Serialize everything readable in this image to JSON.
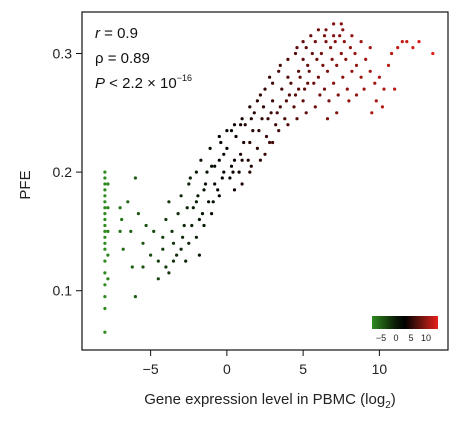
{
  "chart_data": {
    "type": "scatter",
    "xlabel": "Gene expression level in PBMC (log",
    "xlabel_sub": "2",
    "xlabel_close": ")",
    "ylabel": "PFE",
    "xlim": [
      -9.5,
      14.5
    ],
    "ylim": [
      0.05,
      0.335
    ],
    "x_ticks": [
      -5,
      0,
      5,
      10
    ],
    "x_tick_labels": [
      "−5",
      "0",
      "5",
      "10"
    ],
    "y_ticks": [
      0.1,
      0.2,
      0.3
    ],
    "y_tick_labels": [
      "0.1",
      "0.2",
      "0.3"
    ],
    "grid": false,
    "color_encoding": "x",
    "colormap": [
      "#2e8b1e",
      "#000000",
      "#e8201a"
    ],
    "annotations": {
      "r": {
        "symbol": "r",
        "text": " = 0.9"
      },
      "rho": {
        "text": "ρ = 0.89"
      },
      "p": {
        "symbol": "P",
        "text": " < 2.2 × 10",
        "exponent": "−16"
      }
    },
    "colorbar": {
      "placement": "bottom-right",
      "range": [
        -8,
        14
      ],
      "tick_values": [
        -5,
        0,
        5,
        10
      ],
      "tick_labels": [
        "−5",
        "0",
        "5",
        "10"
      ]
    },
    "series": [
      {
        "points": [
          [
            -8.0,
            0.065
          ],
          [
            -8.0,
            0.085
          ],
          [
            -8.0,
            0.095
          ],
          [
            -8.0,
            0.105
          ],
          [
            -8.0,
            0.115
          ],
          [
            -8.0,
            0.125
          ],
          [
            -8.0,
            0.135
          ],
          [
            -8.0,
            0.14
          ],
          [
            -8.0,
            0.145
          ],
          [
            -8.0,
            0.15
          ],
          [
            -8.0,
            0.155
          ],
          [
            -8.0,
            0.16
          ],
          [
            -8.0,
            0.165
          ],
          [
            -8.0,
            0.17
          ],
          [
            -8.0,
            0.175
          ],
          [
            -8.0,
            0.18
          ],
          [
            -8.0,
            0.185
          ],
          [
            -8.0,
            0.19
          ],
          [
            -8.0,
            0.195
          ],
          [
            -8.0,
            0.2
          ],
          [
            -7.8,
            0.11
          ],
          [
            -7.8,
            0.13
          ],
          [
            -7.8,
            0.15
          ],
          [
            -7.8,
            0.17
          ],
          [
            -7.8,
            0.19
          ],
          [
            -7.0,
            0.17
          ],
          [
            -7.0,
            0.15
          ],
          [
            -6.9,
            0.16
          ],
          [
            -6.5,
            0.175
          ],
          [
            -6.0,
            0.195
          ],
          [
            -6.3,
            0.15
          ],
          [
            -6.8,
            0.135
          ],
          [
            -6.2,
            0.12
          ],
          [
            -5.5,
            0.14
          ],
          [
            -5.0,
            0.13
          ],
          [
            -5.8,
            0.165
          ],
          [
            -5.3,
            0.155
          ],
          [
            -4.8,
            0.15
          ],
          [
            -4.5,
            0.125
          ],
          [
            -4.2,
            0.145
          ],
          [
            -6.0,
            0.095
          ],
          [
            -4.0,
            0.16
          ],
          [
            -3.8,
            0.175
          ],
          [
            -3.5,
            0.14
          ],
          [
            -3.2,
            0.165
          ],
          [
            -3.0,
            0.18
          ],
          [
            -2.8,
            0.155
          ],
          [
            -2.5,
            0.19
          ],
          [
            -2.2,
            0.17
          ],
          [
            -2.0,
            0.2
          ],
          [
            -1.8,
            0.16
          ],
          [
            -1.5,
            0.185
          ],
          [
            -1.2,
            0.175
          ],
          [
            -1.0,
            0.205
          ],
          [
            -0.8,
            0.19
          ],
          [
            -0.5,
            0.21
          ],
          [
            -0.3,
            0.195
          ],
          [
            -4.2,
            0.135
          ],
          [
            -3.6,
            0.15
          ],
          [
            -3.3,
            0.13
          ],
          [
            -2.9,
            0.145
          ],
          [
            -2.6,
            0.17
          ],
          [
            -2.3,
            0.155
          ],
          [
            -1.9,
            0.18
          ],
          [
            -1.6,
            0.165
          ],
          [
            -1.3,
            0.2
          ],
          [
            -0.9,
            0.175
          ],
          [
            -0.6,
            0.185
          ],
          [
            -0.2,
            0.215
          ],
          [
            0.0,
            0.22
          ],
          [
            0.3,
            0.205
          ],
          [
            0.6,
            0.23
          ],
          [
            0.9,
            0.215
          ],
          [
            1.2,
            0.24
          ],
          [
            1.5,
            0.225
          ],
          [
            1.8,
            0.25
          ],
          [
            2.1,
            0.235
          ],
          [
            2.4,
            0.255
          ],
          [
            2.7,
            0.245
          ],
          [
            3.0,
            0.26
          ],
          [
            3.3,
            0.25
          ],
          [
            3.6,
            0.27
          ],
          [
            3.9,
            0.26
          ],
          [
            4.2,
            0.275
          ],
          [
            4.5,
            0.265
          ],
          [
            4.8,
            0.28
          ],
          [
            5.1,
            0.27
          ],
          [
            5.4,
            0.285
          ],
          [
            5.7,
            0.275
          ],
          [
            0.2,
            0.195
          ],
          [
            0.5,
            0.21
          ],
          [
            0.8,
            0.2
          ],
          [
            1.1,
            0.225
          ],
          [
            1.4,
            0.21
          ],
          [
            1.7,
            0.235
          ],
          [
            2.0,
            0.22
          ],
          [
            2.3,
            0.245
          ],
          [
            2.6,
            0.23
          ],
          [
            2.9,
            0.25
          ],
          [
            3.2,
            0.24
          ],
          [
            3.5,
            0.255
          ],
          [
            3.8,
            0.245
          ],
          [
            4.1,
            0.265
          ],
          [
            4.4,
            0.255
          ],
          [
            4.7,
            0.27
          ],
          [
            5.0,
            0.26
          ],
          [
            5.3,
            0.275
          ],
          [
            6.0,
            0.28
          ],
          [
            6.3,
            0.29
          ],
          [
            6.6,
            0.285
          ],
          [
            6.9,
            0.295
          ],
          [
            7.2,
            0.29
          ],
          [
            7.5,
            0.3
          ],
          [
            7.8,
            0.295
          ],
          [
            8.1,
            0.305
          ],
          [
            8.4,
            0.3
          ],
          [
            6.2,
            0.3
          ],
          [
            6.5,
            0.31
          ],
          [
            6.8,
            0.305
          ],
          [
            7.1,
            0.31
          ],
          [
            7.4,
            0.315
          ],
          [
            7.7,
            0.31
          ],
          [
            5.9,
            0.295
          ],
          [
            5.6,
            0.3
          ],
          [
            5.3,
            0.29
          ],
          [
            5.0,
            0.295
          ],
          [
            4.7,
            0.285
          ],
          [
            6.1,
            0.265
          ],
          [
            6.4,
            0.27
          ],
          [
            6.7,
            0.26
          ],
          [
            7.0,
            0.275
          ],
          [
            7.3,
            0.265
          ],
          [
            7.6,
            0.28
          ],
          [
            7.9,
            0.27
          ],
          [
            8.2,
            0.285
          ],
          [
            8.5,
            0.29
          ],
          [
            8.8,
            0.28
          ],
          [
            9.1,
            0.295
          ],
          [
            9.4,
            0.285
          ],
          [
            9.7,
            0.275
          ],
          [
            10.0,
            0.28
          ],
          [
            10.3,
            0.27
          ],
          [
            10.6,
            0.29
          ],
          [
            10.8,
            0.3
          ],
          [
            11.2,
            0.305
          ],
          [
            11.5,
            0.31
          ],
          [
            11.8,
            0.31
          ],
          [
            12.2,
            0.305
          ],
          [
            12.6,
            0.31
          ],
          [
            13.5,
            0.3
          ],
          [
            11.0,
            0.27
          ],
          [
            10.2,
            0.255
          ],
          [
            9.8,
            0.26
          ],
          [
            9.5,
            0.25
          ],
          [
            3.0,
            0.225
          ],
          [
            2.5,
            0.215
          ],
          [
            1.5,
            0.2
          ],
          [
            1.0,
            0.19
          ],
          [
            0.5,
            0.185
          ],
          [
            -0.5,
            0.18
          ],
          [
            -1.0,
            0.165
          ],
          [
            -1.5,
            0.155
          ],
          [
            -2.0,
            0.145
          ],
          [
            -2.5,
            0.14
          ],
          [
            -3.0,
            0.135
          ],
          [
            -3.5,
            0.125
          ],
          [
            -4.0,
            0.12
          ],
          [
            -5.5,
            0.12
          ],
          [
            -4.5,
            0.11
          ],
          [
            -3.8,
            0.115
          ],
          [
            -2.7,
            0.125
          ],
          [
            -1.8,
            0.13
          ],
          [
            4.0,
            0.28
          ],
          [
            3.5,
            0.29
          ],
          [
            3.0,
            0.275
          ],
          [
            2.5,
            0.27
          ],
          [
            2.0,
            0.26
          ],
          [
            1.5,
            0.255
          ],
          [
            1.0,
            0.245
          ],
          [
            0.5,
            0.24
          ],
          [
            0.0,
            0.235
          ],
          [
            -0.5,
            0.23
          ],
          [
            4.5,
            0.3
          ],
          [
            5.0,
            0.31
          ],
          [
            5.5,
            0.315
          ],
          [
            6.0,
            0.32
          ],
          [
            6.5,
            0.32
          ],
          [
            7.0,
            0.325
          ],
          [
            7.5,
            0.325
          ],
          [
            8.0,
            0.26
          ],
          [
            8.5,
            0.265
          ],
          [
            9.0,
            0.27
          ],
          [
            7.2,
            0.25
          ],
          [
            6.6,
            0.245
          ],
          [
            5.8,
            0.255
          ],
          [
            5.2,
            0.25
          ],
          [
            4.6,
            0.245
          ],
          [
            4.0,
            0.24
          ],
          [
            3.4,
            0.235
          ],
          [
            2.8,
            0.225
          ],
          [
            2.2,
            0.21
          ],
          [
            1.6,
            0.205
          ],
          [
            1.0,
            0.21
          ],
          [
            0.4,
            0.2
          ],
          [
            -0.2,
            0.2
          ],
          [
            -0.8,
            0.205
          ],
          [
            -1.4,
            0.19
          ],
          [
            -2.0,
            0.175
          ],
          [
            -2.4,
            0.195
          ],
          [
            -1.7,
            0.21
          ],
          [
            -1.1,
            0.22
          ],
          [
            -0.4,
            0.225
          ],
          [
            0.3,
            0.235
          ],
          [
            0.9,
            0.24
          ],
          [
            1.6,
            0.245
          ],
          [
            2.2,
            0.265
          ],
          [
            2.8,
            0.28
          ],
          [
            3.4,
            0.285
          ],
          [
            4.0,
            0.295
          ],
          [
            4.6,
            0.305
          ],
          [
            5.2,
            0.305
          ],
          [
            5.8,
            0.31
          ],
          [
            6.4,
            0.315
          ],
          [
            7.0,
            0.315
          ],
          [
            7.6,
            0.32
          ],
          [
            8.2,
            0.315
          ],
          [
            8.8,
            0.31
          ],
          [
            9.4,
            0.305
          ]
        ]
      }
    ]
  }
}
